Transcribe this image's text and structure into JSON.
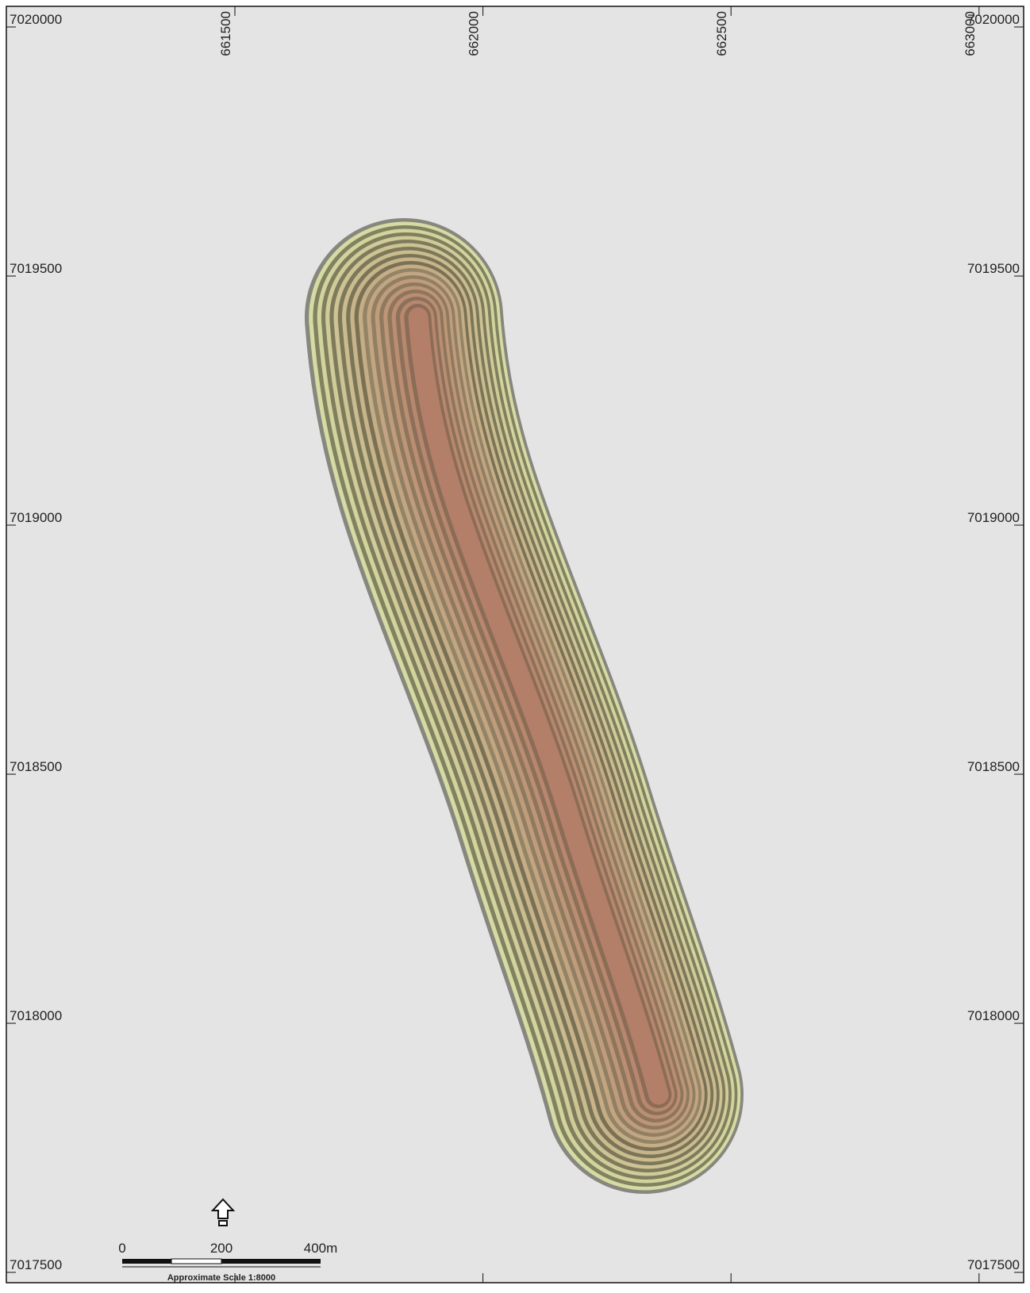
{
  "map": {
    "eastings": [
      661500,
      662000,
      662500,
      663000
    ],
    "northings": [
      7020000,
      7019500,
      7019000,
      7018500,
      7018000,
      7017500
    ],
    "scale_bar": {
      "labels": [
        "0",
        "200",
        "400m"
      ],
      "caption": "Approximate Scale 1:8000"
    }
  }
}
